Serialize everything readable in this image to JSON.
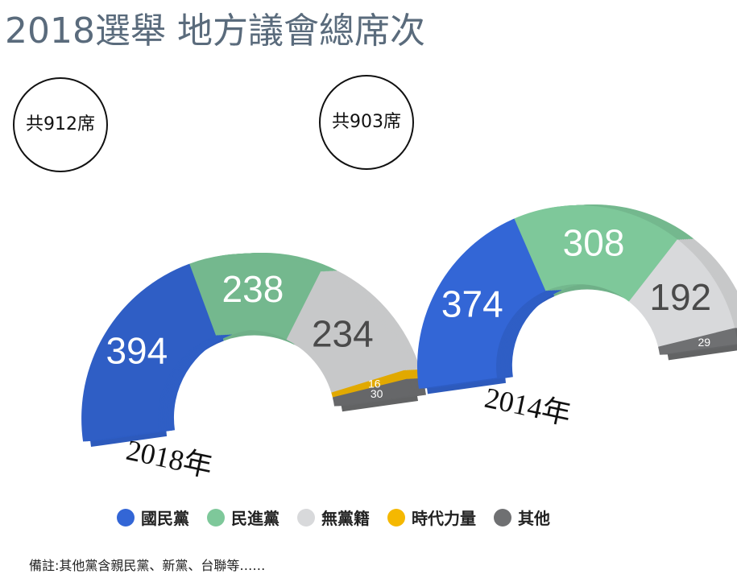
{
  "title": "2018選舉 地方議會總席次",
  "colors": {
    "國民黨": "#3366d6",
    "民進黨": "#7ec89a",
    "無黨籍": "#d8d9db",
    "時代力量": "#f5b800",
    "其他": "#6f7072"
  },
  "chart_data": [
    {
      "type": "pie",
      "year_label": "2018年",
      "total_label": "共912席",
      "total": 912,
      "slices": [
        {
          "party": "國民黨",
          "value": 394,
          "label": "394"
        },
        {
          "party": "民進黨",
          "value": 238,
          "label": "238"
        },
        {
          "party": "無黨籍",
          "value": 234,
          "label": "234"
        },
        {
          "party": "時代力量",
          "value": 16,
          "label": "16"
        },
        {
          "party": "其他",
          "value": 30,
          "label": "30"
        }
      ]
    },
    {
      "type": "pie",
      "year_label": "2014年",
      "total_label": "共903席",
      "total": 903,
      "slices": [
        {
          "party": "國民黨",
          "value": 374,
          "label": "374"
        },
        {
          "party": "民進黨",
          "value": 308,
          "label": "308"
        },
        {
          "party": "無黨籍",
          "value": 192,
          "label": "192"
        },
        {
          "party": "其他",
          "value": 29,
          "label": "29"
        }
      ]
    }
  ],
  "legend": [
    {
      "party": "國民黨",
      "label": "國民黨"
    },
    {
      "party": "民進黨",
      "label": "民進黨"
    },
    {
      "party": "無黨籍",
      "label": "無黨籍"
    },
    {
      "party": "時代力量",
      "label": "時代力量"
    },
    {
      "party": "其他",
      "label": "其他"
    }
  ],
  "note": "備註:其他黨含親民黨、新黨、台聯等……"
}
